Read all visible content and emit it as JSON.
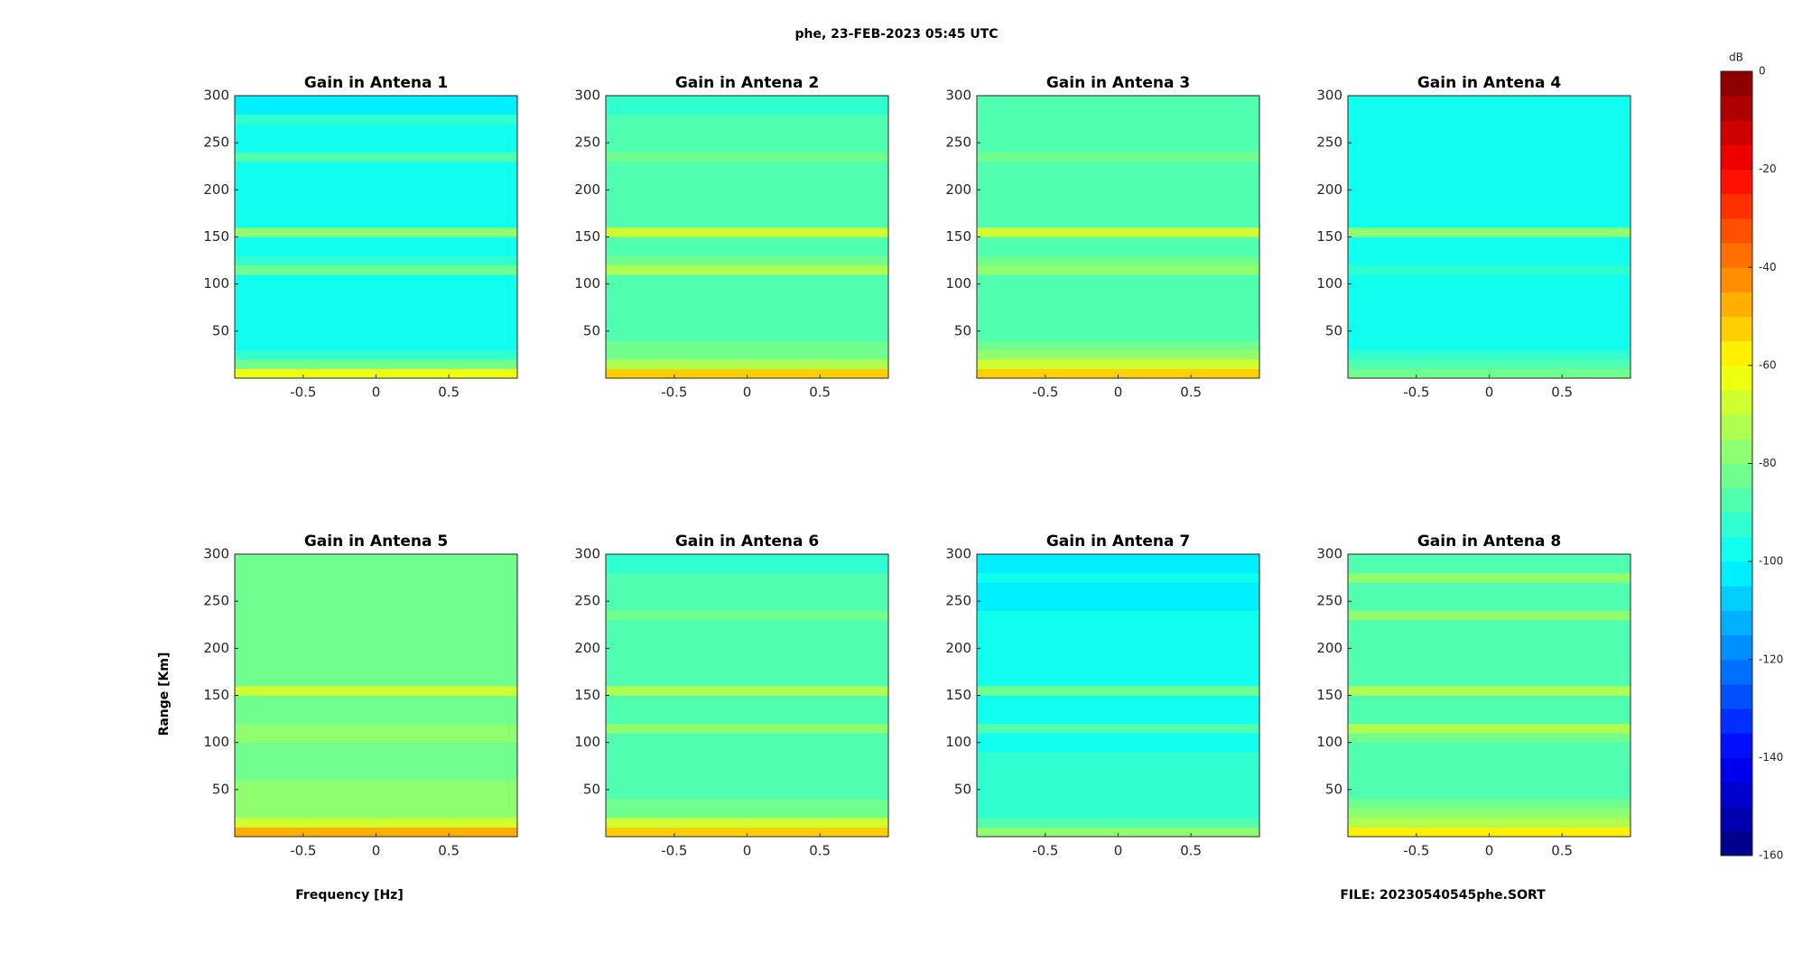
{
  "figure": {
    "title": "phe, 23-FEB-2023 05:45 UTC",
    "xlabel": "Frequency [Hz]",
    "ylabel": "Range [Km]",
    "footer": "FILE: 20230540545phe.SORT"
  },
  "colorbar": {
    "label": "dB",
    "lim": [
      -160,
      0
    ],
    "ticks": [
      0,
      -20,
      -40,
      -60,
      -80,
      -100,
      -120,
      -140,
      -160
    ],
    "colormap": "jet",
    "levels": 32
  },
  "chart_data": [
    {
      "type": "heatmap",
      "title": "Gain in Antena 1",
      "xlim": [
        -0.97,
        0.97
      ],
      "ylim": [
        0,
        300
      ],
      "xticks": [
        -0.5,
        0,
        0.5
      ],
      "yticks": [
        50,
        100,
        150,
        200,
        250,
        300
      ],
      "range_bins": [
        0,
        10,
        20,
        30,
        40,
        50,
        60,
        70,
        80,
        90,
        100,
        110,
        120,
        130,
        140,
        150,
        160,
        170,
        180,
        190,
        200,
        210,
        220,
        230,
        240,
        250,
        260,
        270,
        280,
        290,
        300
      ],
      "values": [
        -65,
        -85,
        -95,
        -98,
        -100,
        -100,
        -100,
        -100,
        -100,
        -100,
        -98,
        -82,
        -95,
        -100,
        -100,
        -80,
        -98,
        -100,
        -100,
        -100,
        -100,
        -100,
        -100,
        -90,
        -100,
        -100,
        -100,
        -95,
        -102,
        -102
      ]
    },
    {
      "type": "heatmap",
      "title": "Gain in Antena 2",
      "xlim": [
        -0.97,
        0.97
      ],
      "ylim": [
        0,
        300
      ],
      "xticks": [
        -0.5,
        0,
        0.5
      ],
      "yticks": [
        50,
        100,
        150,
        200,
        250,
        300
      ],
      "range_bins": [
        0,
        10,
        20,
        30,
        40,
        50,
        60,
        70,
        80,
        90,
        100,
        110,
        120,
        130,
        140,
        150,
        160,
        170,
        180,
        190,
        200,
        210,
        220,
        230,
        240,
        250,
        260,
        270,
        280,
        290,
        300
      ],
      "values": [
        -55,
        -72,
        -82,
        -85,
        -88,
        -90,
        -90,
        -90,
        -90,
        -90,
        -88,
        -75,
        -85,
        -90,
        -90,
        -70,
        -88,
        -90,
        -90,
        -90,
        -90,
        -90,
        -90,
        -82,
        -90,
        -90,
        -90,
        -88,
        -92,
        -92
      ]
    },
    {
      "type": "heatmap",
      "title": "Gain in Antena 3",
      "xlim": [
        -0.97,
        0.97
      ],
      "ylim": [
        0,
        300
      ],
      "xticks": [
        -0.5,
        0,
        0.5
      ],
      "yticks": [
        50,
        100,
        150,
        200,
        250,
        300
      ],
      "range_bins": [
        0,
        10,
        20,
        30,
        40,
        50,
        60,
        70,
        80,
        90,
        100,
        110,
        120,
        130,
        140,
        150,
        160,
        170,
        180,
        190,
        200,
        210,
        220,
        230,
        240,
        250,
        260,
        270,
        280,
        290,
        300
      ],
      "values": [
        -52,
        -70,
        -80,
        -84,
        -86,
        -88,
        -88,
        -88,
        -88,
        -88,
        -86,
        -76,
        -84,
        -88,
        -88,
        -66,
        -86,
        -88,
        -88,
        -88,
        -88,
        -88,
        -88,
        -85,
        -88,
        -88,
        -88,
        -88,
        -90,
        -90
      ]
    },
    {
      "type": "heatmap",
      "title": "Gain in Antena 4",
      "xlim": [
        -0.97,
        0.97
      ],
      "ylim": [
        0,
        300
      ],
      "xticks": [
        -0.5,
        0,
        0.5
      ],
      "yticks": [
        50,
        100,
        150,
        200,
        250,
        300
      ],
      "range_bins": [
        0,
        10,
        20,
        30,
        40,
        50,
        60,
        70,
        80,
        90,
        100,
        110,
        120,
        130,
        140,
        150,
        160,
        170,
        180,
        190,
        200,
        210,
        220,
        230,
        240,
        250,
        260,
        270,
        280,
        290,
        300
      ],
      "values": [
        -82,
        -90,
        -94,
        -96,
        -96,
        -96,
        -96,
        -96,
        -96,
        -96,
        -96,
        -94,
        -96,
        -96,
        -96,
        -78,
        -96,
        -96,
        -96,
        -96,
        -96,
        -96,
        -96,
        -96,
        -96,
        -96,
        -96,
        -96,
        -98,
        -98
      ]
    },
    {
      "type": "heatmap",
      "title": "Gain in Antena 5",
      "xlim": [
        -0.97,
        0.97
      ],
      "ylim": [
        0,
        300
      ],
      "xticks": [
        -0.5,
        0,
        0.5
      ],
      "yticks": [
        50,
        100,
        150,
        200,
        250,
        300
      ],
      "range_bins": [
        0,
        10,
        20,
        30,
        40,
        50,
        60,
        70,
        80,
        90,
        100,
        110,
        120,
        130,
        140,
        150,
        160,
        170,
        180,
        190,
        200,
        210,
        220,
        230,
        240,
        250,
        260,
        270,
        280,
        290,
        300
      ],
      "values": [
        -50,
        -68,
        -76,
        -78,
        -80,
        -80,
        -82,
        -82,
        -82,
        -82,
        -80,
        -76,
        -82,
        -84,
        -84,
        -66,
        -82,
        -84,
        -84,
        -84,
        -84,
        -84,
        -84,
        -84,
        -84,
        -84,
        -84,
        -84,
        -85,
        -85
      ]
    },
    {
      "type": "heatmap",
      "title": "Gain in Antena 6",
      "xlim": [
        -0.97,
        0.97
      ],
      "ylim": [
        0,
        300
      ],
      "xticks": [
        -0.5,
        0,
        0.5
      ],
      "yticks": [
        50,
        100,
        150,
        200,
        250,
        300
      ],
      "range_bins": [
        0,
        10,
        20,
        30,
        40,
        50,
        60,
        70,
        80,
        90,
        100,
        110,
        120,
        130,
        140,
        150,
        160,
        170,
        180,
        190,
        200,
        210,
        220,
        230,
        240,
        250,
        260,
        270,
        280,
        290,
        300
      ],
      "values": [
        -55,
        -70,
        -82,
        -84,
        -86,
        -88,
        -88,
        -88,
        -88,
        -88,
        -86,
        -76,
        -86,
        -88,
        -88,
        -72,
        -88,
        -90,
        -90,
        -90,
        -90,
        -90,
        -90,
        -82,
        -90,
        -90,
        -90,
        -86,
        -92,
        -92
      ]
    },
    {
      "type": "heatmap",
      "title": "Gain in Antena 7",
      "xlim": [
        -0.97,
        0.97
      ],
      "ylim": [
        0,
        300
      ],
      "xticks": [
        -0.5,
        0,
        0.5
      ],
      "yticks": [
        50,
        100,
        150,
        200,
        250,
        300
      ],
      "range_bins": [
        0,
        10,
        20,
        30,
        40,
        50,
        60,
        70,
        80,
        90,
        100,
        110,
        120,
        130,
        140,
        150,
        160,
        170,
        180,
        190,
        200,
        210,
        220,
        230,
        240,
        250,
        260,
        270,
        280,
        290,
        300
      ],
      "values": [
        -80,
        -88,
        -92,
        -94,
        -94,
        -95,
        -95,
        -95,
        -95,
        -96,
        -96,
        -86,
        -96,
        -96,
        -96,
        -82,
        -98,
        -100,
        -100,
        -100,
        -100,
        -100,
        -100,
        -96,
        -102,
        -102,
        -102,
        -100,
        -104,
        -104
      ]
    },
    {
      "type": "heatmap",
      "title": "Gain in Antena 8",
      "xlim": [
        -0.97,
        0.97
      ],
      "ylim": [
        0,
        300
      ],
      "xticks": [
        -0.5,
        0,
        0.5
      ],
      "yticks": [
        50,
        100,
        150,
        200,
        250,
        300
      ],
      "range_bins": [
        0,
        10,
        20,
        30,
        40,
        50,
        60,
        70,
        80,
        90,
        100,
        110,
        120,
        130,
        140,
        150,
        160,
        170,
        180,
        190,
        200,
        210,
        220,
        230,
        240,
        250,
        260,
        270,
        280,
        290,
        300
      ],
      "values": [
        -58,
        -72,
        -80,
        -84,
        -86,
        -86,
        -86,
        -86,
        -86,
        -86,
        -84,
        -74,
        -86,
        -88,
        -88,
        -72,
        -88,
        -88,
        -88,
        -88,
        -88,
        -88,
        -88,
        -76,
        -88,
        -88,
        -88,
        -80,
        -90,
        -90
      ]
    }
  ]
}
